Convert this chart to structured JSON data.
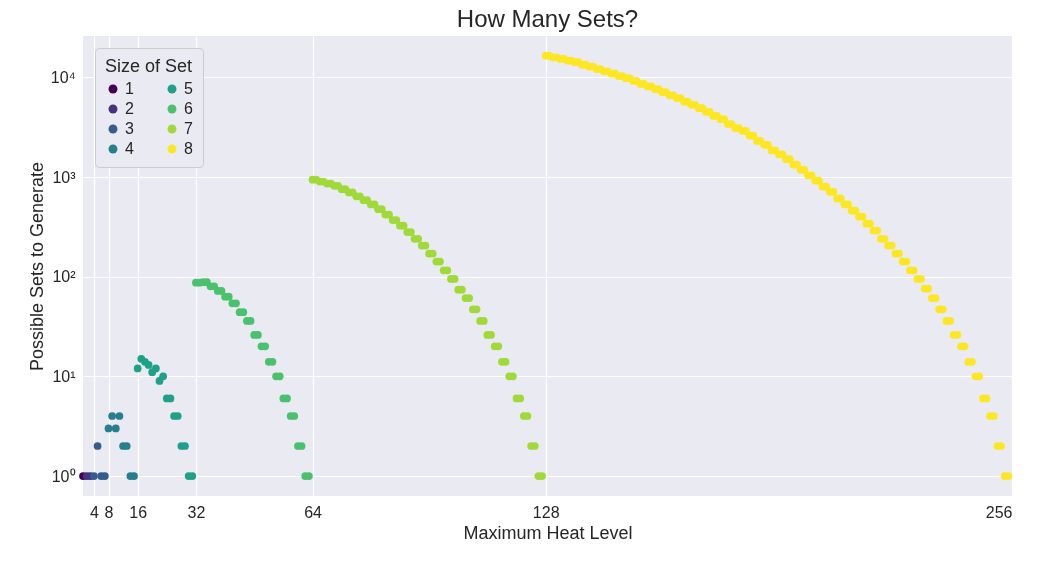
{
  "chart_data": {
    "type": "scatter",
    "title": "How Many Sets?",
    "xlabel": "Maximum Heat Level",
    "ylabel": "Possible Sets to Generate",
    "legend_title": "Size of Set",
    "legend": "top left",
    "grid": true,
    "marker": "circle",
    "log": "y",
    "xlim": [
      1,
      256
    ],
    "xticks": [
      4,
      8,
      16,
      32,
      64,
      128,
      256
    ],
    "ylim": [
      0.63,
      26000
    ],
    "yticks": [
      {
        "value": 1,
        "label": "10⁰"
      },
      {
        "value": 10,
        "label": "10¹"
      },
      {
        "value": 100,
        "label": "10²"
      },
      {
        "value": 1000,
        "label": "10³"
      },
      {
        "value": 10000,
        "label": "10⁴"
      }
    ],
    "series": [
      {
        "name": "1",
        "color": "#440154",
        "x": [
          1
        ],
        "values": [
          1
        ]
      },
      {
        "name": "2",
        "color": "#46327e",
        "x": [
          2,
          3
        ],
        "values": [
          1,
          1
        ]
      },
      {
        "name": "3",
        "color": "#365c8d",
        "x": [
          4,
          5,
          6,
          7
        ],
        "values": [
          1,
          2,
          1,
          1
        ]
      },
      {
        "name": "4",
        "color": "#277f8e",
        "x": [
          8,
          9,
          10,
          11,
          12,
          13,
          14,
          15
        ],
        "values": [
          3,
          4,
          3,
          4,
          2,
          2,
          1,
          1
        ]
      },
      {
        "name": "5",
        "color": "#1fa187",
        "x": [
          16,
          17,
          18,
          19,
          20,
          21,
          22,
          23,
          24,
          25,
          26,
          27,
          28,
          29,
          30,
          31
        ],
        "values": [
          12,
          15,
          14,
          13,
          11,
          12,
          9,
          10,
          6,
          6,
          4,
          4,
          2,
          2,
          1,
          1
        ]
      },
      {
        "name": "6",
        "color": "#4ac16d",
        "x": [
          32,
          33,
          34,
          35,
          36,
          37,
          38,
          39,
          40,
          41,
          42,
          43,
          44,
          45,
          46,
          47,
          48,
          49,
          50,
          51,
          52,
          53,
          54,
          55,
          56,
          57,
          58,
          59,
          60,
          61,
          62,
          63
        ],
        "values": [
          87,
          87,
          88,
          88,
          80,
          80,
          72,
          72,
          63,
          63,
          54,
          54,
          44,
          44,
          36,
          36,
          26,
          26,
          20,
          20,
          14,
          14,
          10,
          10,
          6,
          6,
          4,
          4,
          2,
          2,
          1,
          1
        ]
      },
      {
        "name": "7",
        "color": "#a0da39",
        "x": [
          64,
          65,
          66,
          67,
          68,
          69,
          70,
          71,
          72,
          73,
          74,
          75,
          76,
          77,
          78,
          79,
          80,
          81,
          82,
          83,
          84,
          85,
          86,
          87,
          88,
          89,
          90,
          91,
          92,
          93,
          94,
          95,
          96,
          97,
          98,
          99,
          100,
          101,
          102,
          103,
          104,
          105,
          106,
          107,
          108,
          109,
          110,
          111,
          112,
          113,
          114,
          115,
          116,
          117,
          118,
          119,
          120,
          121,
          122,
          123,
          124,
          125,
          126,
          127
        ],
        "values": [
          940,
          940,
          900,
          900,
          860,
          860,
          815,
          815,
          755,
          755,
          700,
          700,
          640,
          640,
          585,
          585,
          530,
          530,
          475,
          475,
          420,
          420,
          370,
          370,
          325,
          325,
          280,
          280,
          240,
          240,
          205,
          205,
          170,
          170,
          142,
          142,
          116,
          116,
          95,
          95,
          74,
          74,
          61,
          61,
          47,
          47,
          36,
          36,
          26,
          26,
          20,
          20,
          14,
          14,
          10,
          10,
          6,
          6,
          4,
          4,
          2,
          2,
          1,
          1
        ]
      },
      {
        "name": "8",
        "color": "#fde725",
        "x": [
          128,
          129,
          130,
          131,
          132,
          133,
          134,
          135,
          136,
          137,
          138,
          139,
          140,
          141,
          142,
          143,
          144,
          145,
          146,
          147,
          148,
          149,
          150,
          151,
          152,
          153,
          154,
          155,
          156,
          157,
          158,
          159,
          160,
          161,
          162,
          163,
          164,
          165,
          166,
          167,
          168,
          169,
          170,
          171,
          172,
          173,
          174,
          175,
          176,
          177,
          178,
          179,
          180,
          181,
          182,
          183,
          184,
          185,
          186,
          187,
          188,
          189,
          190,
          191,
          192,
          193,
          194,
          195,
          196,
          197,
          198,
          199,
          200,
          201,
          202,
          203,
          204,
          205,
          206,
          207,
          208,
          209,
          210,
          211,
          212,
          213,
          214,
          215,
          216,
          217,
          218,
          219,
          220,
          221,
          222,
          223,
          224,
          225,
          226,
          227,
          228,
          229,
          230,
          231,
          232,
          233,
          234,
          235,
          236,
          237,
          238,
          239,
          240,
          241,
          242,
          243,
          244,
          245,
          246,
          247,
          248,
          249,
          250,
          251,
          252,
          253,
          254,
          255
        ],
        "values": [
          16500,
          16500,
          15900,
          15900,
          15300,
          15300,
          14700,
          14700,
          14200,
          14200,
          13400,
          13400,
          12800,
          12800,
          12100,
          12100,
          11500,
          11500,
          10900,
          10900,
          10300,
          10300,
          9800,
          9800,
          9200,
          9200,
          8600,
          8600,
          8100,
          8100,
          7600,
          7600,
          7100,
          7100,
          6600,
          6600,
          6200,
          6200,
          5700,
          5700,
          5300,
          5300,
          4900,
          4900,
          4500,
          4500,
          4100,
          4100,
          3800,
          3800,
          3400,
          3400,
          3100,
          3100,
          2900,
          2900,
          2600,
          2600,
          2300,
          2300,
          2100,
          2100,
          1850,
          1850,
          1690,
          1690,
          1510,
          1510,
          1330,
          1330,
          1180,
          1180,
          1040,
          1040,
          920,
          920,
          800,
          800,
          710,
          710,
          610,
          610,
          530,
          530,
          460,
          460,
          400,
          400,
          340,
          340,
          290,
          290,
          240,
          240,
          205,
          205,
          170,
          170,
          142,
          142,
          116,
          116,
          95,
          95,
          76,
          76,
          61,
          61,
          47,
          47,
          36,
          36,
          26,
          26,
          20,
          20,
          14,
          14,
          10,
          10,
          6,
          6,
          4,
          4,
          2,
          2,
          1,
          1
        ]
      }
    ]
  }
}
